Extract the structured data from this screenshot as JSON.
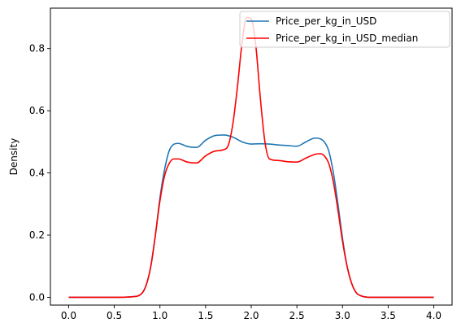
{
  "chart_data": {
    "type": "line",
    "title": "",
    "xlabel": "",
    "ylabel": "Density",
    "xlim": [
      -0.2,
      4.2
    ],
    "ylim": [
      -0.025,
      0.93
    ],
    "xticks": [
      0.0,
      0.5,
      1.0,
      1.5,
      2.0,
      2.5,
      3.0,
      3.5,
      4.0
    ],
    "xtick_labels": [
      "0.0",
      "0.5",
      "1.0",
      "1.5",
      "2.0",
      "2.5",
      "3.0",
      "3.5",
      "4.0"
    ],
    "yticks": [
      0.0,
      0.2,
      0.4,
      0.6,
      0.8
    ],
    "ytick_labels": [
      "0.0",
      "0.2",
      "0.4",
      "0.6",
      "0.8"
    ],
    "grid": false,
    "legend_position": "top-right",
    "series": [
      {
        "name": "Price_per_kg_in_USD",
        "color": "#1f77b4",
        "x": [
          0.0,
          0.5,
          0.7,
          0.8,
          0.85,
          0.9,
          0.95,
          1.0,
          1.05,
          1.1,
          1.15,
          1.2,
          1.3,
          1.4,
          1.5,
          1.6,
          1.7,
          1.8,
          1.9,
          2.0,
          2.1,
          2.2,
          2.3,
          2.4,
          2.5,
          2.6,
          2.7,
          2.8,
          2.85,
          2.9,
          2.95,
          3.0,
          3.05,
          3.1,
          3.15,
          3.2,
          3.3,
          3.5,
          4.0
        ],
        "y": [
          0.0,
          0.0,
          0.002,
          0.012,
          0.04,
          0.1,
          0.2,
          0.32,
          0.41,
          0.47,
          0.492,
          0.495,
          0.485,
          0.482,
          0.505,
          0.52,
          0.522,
          0.515,
          0.5,
          0.493,
          0.494,
          0.493,
          0.49,
          0.488,
          0.486,
          0.5,
          0.512,
          0.5,
          0.47,
          0.4,
          0.3,
          0.19,
          0.1,
          0.045,
          0.015,
          0.005,
          0.0,
          0.0,
          0.0
        ]
      },
      {
        "name": "Price_per_kg_in_USD_median",
        "color": "#ff0000",
        "x": [
          0.0,
          0.5,
          0.7,
          0.8,
          0.85,
          0.9,
          0.95,
          1.0,
          1.05,
          1.1,
          1.15,
          1.2,
          1.3,
          1.4,
          1.5,
          1.6,
          1.7,
          1.75,
          1.8,
          1.85,
          1.9,
          1.95,
          2.0,
          2.05,
          2.1,
          2.15,
          2.2,
          2.3,
          2.4,
          2.5,
          2.6,
          2.7,
          2.75,
          2.8,
          2.85,
          2.9,
          2.95,
          3.0,
          3.05,
          3.1,
          3.15,
          3.2,
          3.3,
          3.5,
          4.0
        ],
        "y": [
          0.0,
          0.0,
          0.002,
          0.012,
          0.04,
          0.1,
          0.2,
          0.31,
          0.39,
          0.43,
          0.445,
          0.445,
          0.435,
          0.432,
          0.455,
          0.47,
          0.475,
          0.49,
          0.56,
          0.68,
          0.82,
          0.9,
          0.895,
          0.81,
          0.64,
          0.5,
          0.445,
          0.44,
          0.436,
          0.435,
          0.448,
          0.46,
          0.462,
          0.455,
          0.43,
          0.37,
          0.28,
          0.18,
          0.1,
          0.045,
          0.015,
          0.005,
          0.0,
          0.0,
          0.0
        ]
      }
    ]
  }
}
